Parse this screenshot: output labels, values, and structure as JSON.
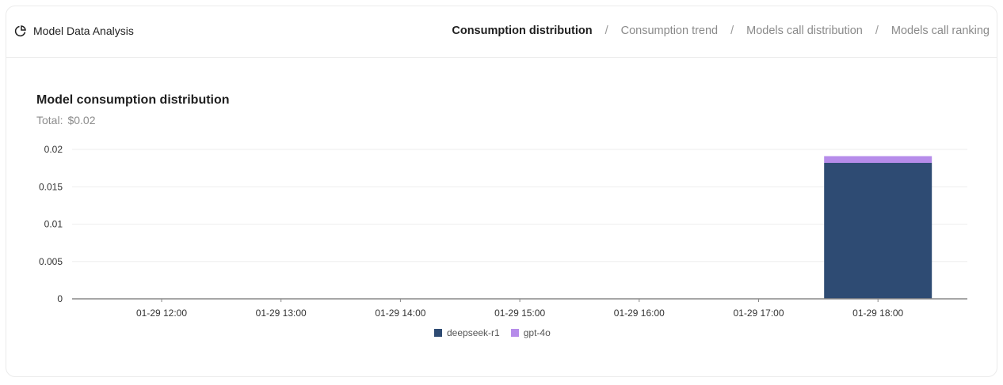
{
  "header": {
    "title": "Model Data Analysis",
    "icon": "pie-chart-icon"
  },
  "tabs": [
    {
      "label": "Consumption distribution",
      "active": true
    },
    {
      "label": "Consumption trend",
      "active": false
    },
    {
      "label": "Models call distribution",
      "active": false
    },
    {
      "label": "Models call ranking",
      "active": false
    }
  ],
  "tab_separator": "/",
  "chart": {
    "title": "Model consumption distribution",
    "total_label": "Total:",
    "total_value": "$0.02"
  },
  "colors": {
    "deepseek-r1": "#2e4b73",
    "gpt-4o": "#b68cea",
    "grid": "#eeeeee",
    "axis": "#888888"
  },
  "chart_data": {
    "type": "bar",
    "stacked": true,
    "title": "Model consumption distribution",
    "subtitle": "Total: $0.02",
    "xlabel": "",
    "ylabel": "",
    "categories": [
      "01-29 12:00",
      "01-29 13:00",
      "01-29 14:00",
      "01-29 15:00",
      "01-29 16:00",
      "01-29 17:00",
      "01-29 18:00"
    ],
    "series": [
      {
        "name": "deepseek-r1",
        "color": "#2e4b73",
        "values": [
          0,
          0,
          0,
          0,
          0,
          0,
          0.0182
        ]
      },
      {
        "name": "gpt-4o",
        "color": "#b68cea",
        "values": [
          0,
          0,
          0,
          0,
          0,
          0,
          0.0009
        ]
      }
    ],
    "y_ticks": [
      "0",
      "0.005",
      "0.01",
      "0.015",
      "0.02"
    ],
    "ylim": [
      0,
      0.02
    ],
    "grid": true,
    "legend_position": "bottom"
  }
}
